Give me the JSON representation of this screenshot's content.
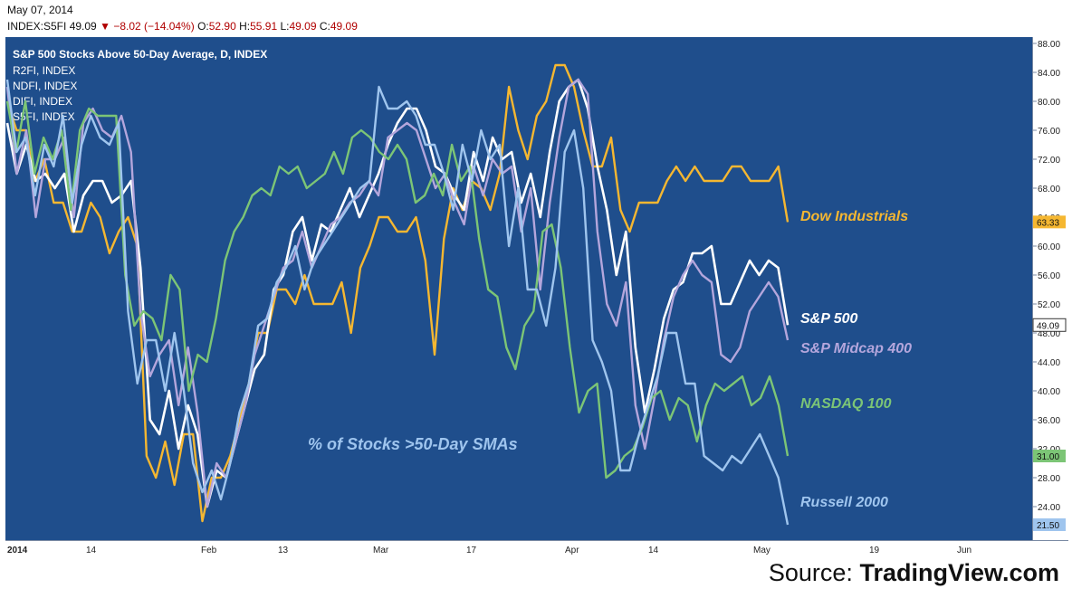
{
  "header": {
    "date": "May 07, 2014",
    "symbol": "INDEX:S5FI",
    "last": "49.09",
    "change": "−8.02 (−14.04%)",
    "o_label": "O:",
    "o": "52.90",
    "h_label": "H:",
    "h": "55.91",
    "l_label": "L:",
    "l": "49.09",
    "c_label": "C:",
    "c": "49.09"
  },
  "source_prefix": "Source: ",
  "source_name": "TradingView.com",
  "chart_data": {
    "type": "line",
    "title": "S&P 500 Stocks Above 50-Day Average, D, INDEX",
    "legend": [
      "R2FI, INDEX",
      "NDFI, INDEX",
      "DIFI, INDEX",
      "S5FI, INDEX"
    ],
    "legend_placement": "top-left",
    "annotation": "% of Stocks >50-Day SMAs",
    "ylim": [
      20,
      88
    ],
    "y_ticks": [
      "88.00",
      "84.00",
      "80.00",
      "76.00",
      "72.00",
      "68.00",
      "64.00",
      "60.00",
      "56.00",
      "52.00",
      "48.00",
      "44.00",
      "40.00",
      "36.00",
      "32.00",
      "28.00",
      "24.00"
    ],
    "x_ticks": [
      "2014",
      "14",
      "Feb",
      "13",
      "Mar",
      "17",
      "Apr",
      "14",
      "May",
      "19",
      "Jun"
    ],
    "grid": false,
    "colors": {
      "background": "#1f4e8c",
      "dow": "#f5b731",
      "sp500": "#ffffff",
      "midcap": "#b4a6dc",
      "nasdaq": "#7cc576",
      "russell": "#9fc5ee"
    },
    "series": [
      {
        "key": "dow",
        "name": "Dow Industrials",
        "last": "63.33",
        "values": [
          80,
          76,
          76,
          69,
          72,
          66,
          66,
          62,
          62,
          66,
          64,
          59,
          62,
          64,
          60,
          31,
          28,
          33,
          27,
          34,
          34,
          22,
          28,
          28,
          31,
          36,
          41,
          48,
          48,
          54,
          54,
          52,
          56,
          52,
          52,
          52,
          55,
          48,
          57,
          60,
          64,
          64,
          62,
          62,
          64,
          58,
          45,
          61,
          68,
          65,
          69,
          68,
          65,
          70,
          82,
          76,
          72,
          78,
          80,
          85,
          85,
          82,
          76,
          71,
          71,
          75,
          65,
          62,
          66,
          66,
          66,
          69,
          71,
          69,
          71,
          69,
          69,
          69,
          71,
          71,
          69,
          69,
          69,
          71,
          63.33
        ]
      },
      {
        "key": "sp500",
        "name": "S&P 500",
        "last": "49.09",
        "values": [
          77,
          70,
          74,
          69,
          70,
          68,
          70,
          62,
          67,
          69,
          69,
          66,
          67,
          69,
          57,
          36,
          34,
          40,
          32,
          38,
          34,
          24,
          29,
          28,
          33,
          38,
          43,
          45,
          54,
          56,
          62,
          64,
          58,
          63,
          62,
          65,
          68,
          64,
          67,
          70,
          74,
          77,
          79,
          79,
          76,
          71,
          70,
          67,
          65,
          73,
          69,
          75,
          72,
          73,
          66,
          70,
          64,
          73,
          80,
          82,
          83,
          79,
          71,
          65,
          56,
          62,
          46,
          37,
          43,
          50,
          54,
          55,
          59,
          59,
          60,
          52,
          52,
          55,
          58,
          56,
          58,
          57,
          49.09
        ]
      },
      {
        "key": "midcap",
        "name": "S&P Midcap 400",
        "last": "47.00",
        "values": [
          82,
          70,
          76,
          64,
          72,
          72,
          75,
          64,
          77,
          79,
          76,
          75,
          78,
          73,
          51,
          42,
          45,
          47,
          38,
          46,
          37,
          24,
          30,
          28,
          33,
          38,
          45,
          49,
          53,
          57,
          58,
          62,
          57,
          60,
          63,
          64,
          66,
          67,
          69,
          67,
          75,
          76,
          77,
          76,
          72,
          68,
          70,
          66,
          63,
          71,
          67,
          72,
          70,
          71,
          62,
          68,
          54,
          66,
          75,
          82,
          83,
          81,
          62,
          52,
          49,
          55,
          38,
          32,
          39,
          47,
          53,
          56,
          58,
          56,
          55,
          45,
          44,
          46,
          51,
          53,
          55,
          53,
          47
        ]
      },
      {
        "key": "nasdaq",
        "name": "NASDAQ 100",
        "last": "31.00",
        "values": [
          80,
          73,
          80,
          70,
          75,
          72,
          76,
          65,
          76,
          79,
          78,
          78,
          78,
          56,
          49,
          51,
          50,
          47,
          56,
          54,
          40,
          45,
          44,
          50,
          58,
          62,
          64,
          67,
          68,
          67,
          71,
          70,
          71,
          68,
          69,
          70,
          73,
          70,
          75,
          76,
          75,
          73,
          72,
          74,
          72,
          66,
          67,
          70,
          67,
          74,
          69,
          71,
          61,
          54,
          53,
          46,
          43,
          49,
          51,
          62,
          63,
          57,
          46,
          37,
          40,
          41,
          28,
          29,
          31,
          32,
          35,
          39,
          40,
          36,
          39,
          38,
          33,
          38,
          41,
          40,
          41,
          42,
          38,
          39,
          42,
          38,
          31
        ]
      },
      {
        "key": "russell",
        "name": "Russell 2000",
        "last": "21.50",
        "values": [
          83,
          73,
          75,
          67,
          74,
          71,
          78,
          66,
          74,
          78,
          75,
          74,
          77,
          51,
          41,
          47,
          47,
          40,
          48,
          40,
          30,
          26,
          29,
          25,
          30,
          37,
          41,
          49,
          50,
          55,
          57,
          60,
          54,
          58,
          60,
          62,
          64,
          66,
          68,
          69,
          82,
          79,
          79,
          80,
          78,
          74,
          74,
          70,
          65,
          74,
          69,
          76,
          72,
          74,
          60,
          68,
          54,
          54,
          49,
          57,
          73,
          76,
          68,
          47,
          44,
          40,
          29,
          29,
          34,
          38,
          42,
          48,
          48,
          41,
          41,
          31,
          30,
          29,
          31,
          30,
          32,
          34,
          31,
          28,
          21.5
        ]
      }
    ]
  }
}
